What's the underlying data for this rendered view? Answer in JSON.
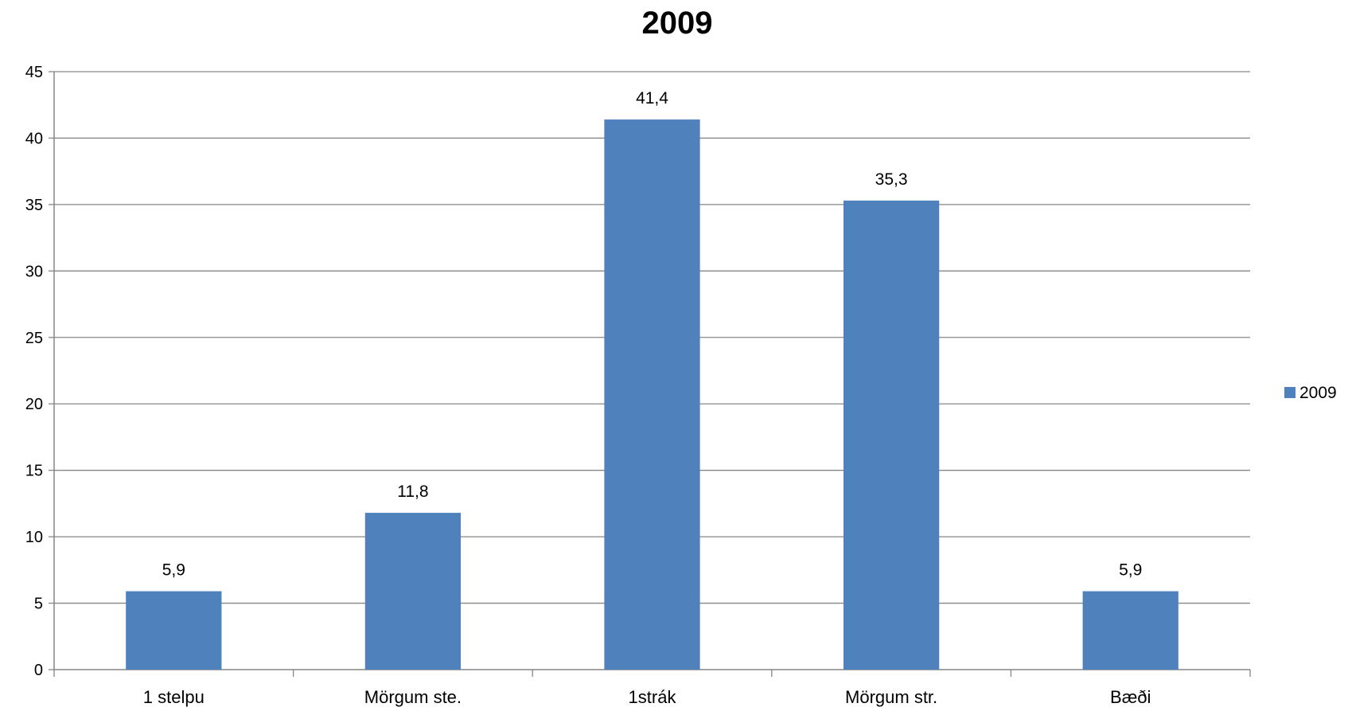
{
  "chart_data": {
    "type": "bar",
    "title": "2009",
    "xlabel": "",
    "ylabel": "",
    "categories": [
      "1 stelpu",
      "Mörgum ste.",
      "1strák",
      "Mörgum str.",
      "Bæði"
    ],
    "series": [
      {
        "name": "2009",
        "color": "#4F81BD",
        "values": [
          5.9,
          11.8,
          41.4,
          35.3,
          5.9
        ],
        "data_labels": [
          "5,9",
          "11,8",
          "41,4",
          "35,3",
          "5,9"
        ]
      }
    ],
    "ylim": [
      0,
      45
    ],
    "yticks": [
      0,
      5,
      10,
      15,
      20,
      25,
      30,
      35,
      40,
      45
    ],
    "grid": true,
    "gridline_color": "#868686",
    "legend": "right"
  }
}
